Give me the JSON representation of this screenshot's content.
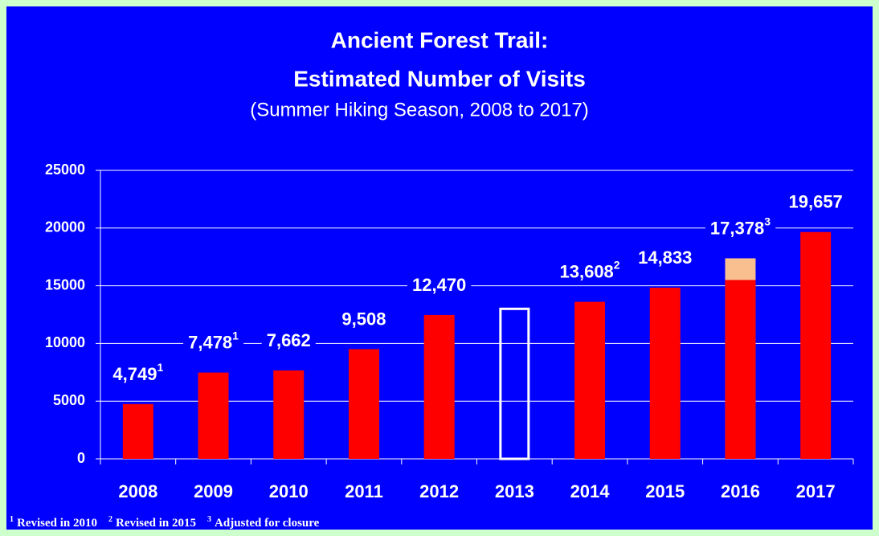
{
  "chart_data": {
    "type": "bar",
    "title": [
      "Ancient Forest Trail:",
      "Estimated Number of Visits"
    ],
    "subtitle": "(Summer Hiking Season, 2008 to 2017)",
    "categories": [
      "2008",
      "2009",
      "2010",
      "2011",
      "2012",
      "2013",
      "2014",
      "2015",
      "2016",
      "2017"
    ],
    "values": [
      4749,
      7478,
      7662,
      9508,
      12470,
      null,
      13608,
      14833,
      17378,
      19657
    ],
    "value_labels": [
      "4,749",
      "7,478",
      "7,662",
      "9,508",
      "12,470",
      null,
      "13,608",
      "14,833",
      "17,378",
      "19,657"
    ],
    "label_notes": [
      "1",
      "1",
      null,
      null,
      null,
      null,
      "2",
      null,
      "3",
      null
    ],
    "color": "#ff0000",
    "bar_colors": [
      null,
      null,
      null,
      null,
      null,
      null,
      null,
      null,
      "#f9bf8f",
      null
    ],
    "base_values": [
      null,
      null,
      null,
      null,
      null,
      null,
      null,
      null,
      15500,
      null
    ],
    "outline_values": [
      null,
      null,
      null,
      null,
      null,
      13000,
      null,
      null,
      null,
      null
    ],
    "outline_color": "#ffffff",
    "ylim": [
      0,
      25000
    ],
    "yticks": [
      0,
      5000,
      10000,
      15000,
      20000,
      25000
    ],
    "grid": true,
    "footnotes": [
      {
        "mark": "1",
        "text": "Revised in 2010"
      },
      {
        "mark": "2",
        "text": "Revised in 2015"
      },
      {
        "mark": "3",
        "text": "Adjusted for closure"
      }
    ]
  }
}
